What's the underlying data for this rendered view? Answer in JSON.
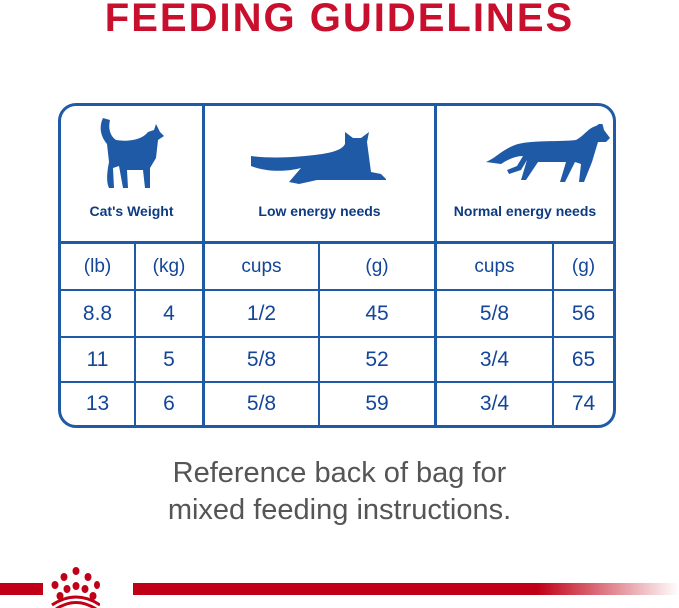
{
  "title": "FEEDING GUIDELINES",
  "headers": [
    {
      "label": "Cat's Weight",
      "icon": "standing-cat-icon"
    },
    {
      "label": "Low energy needs",
      "icon": "lying-cat-icon"
    },
    {
      "label": "Normal energy needs",
      "icon": "walking-cat-icon"
    }
  ],
  "subheaders": [
    "(lb)",
    "(kg)",
    "cups",
    "(g)",
    "cups",
    "(g)"
  ],
  "rows": [
    [
      "8.8",
      "4",
      "1/2",
      "45",
      "5/8",
      "56"
    ],
    [
      "11",
      "5",
      "5/8",
      "52",
      "3/4",
      "65"
    ],
    [
      "13",
      "6",
      "5/8",
      "59",
      "3/4",
      "74"
    ]
  ],
  "note_line1": "Reference back of bag for",
  "note_line2": "mixed feeding instructions.",
  "colors": {
    "title": "#c8102e",
    "table": "#1f5aa6",
    "brand_bar": "#c00016"
  },
  "logo": "royal-canin-crown-logo"
}
